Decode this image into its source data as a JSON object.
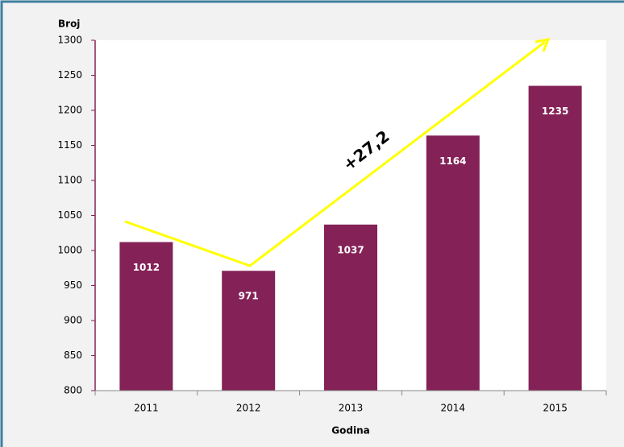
{
  "chart_data": {
    "type": "bar",
    "y_label": "Broj",
    "x_label": "Godina",
    "categories": [
      "2011",
      "2012",
      "2013",
      "2014",
      "2015"
    ],
    "values": [
      1012,
      971,
      1037,
      1164,
      1235
    ],
    "color": "#842257",
    "ylim": [
      800,
      1300
    ],
    "yticks": [
      800,
      850,
      900,
      950,
      1000,
      1050,
      1100,
      1150,
      1200,
      1250,
      1300
    ],
    "grid": false,
    "annotation": "+27,2"
  }
}
